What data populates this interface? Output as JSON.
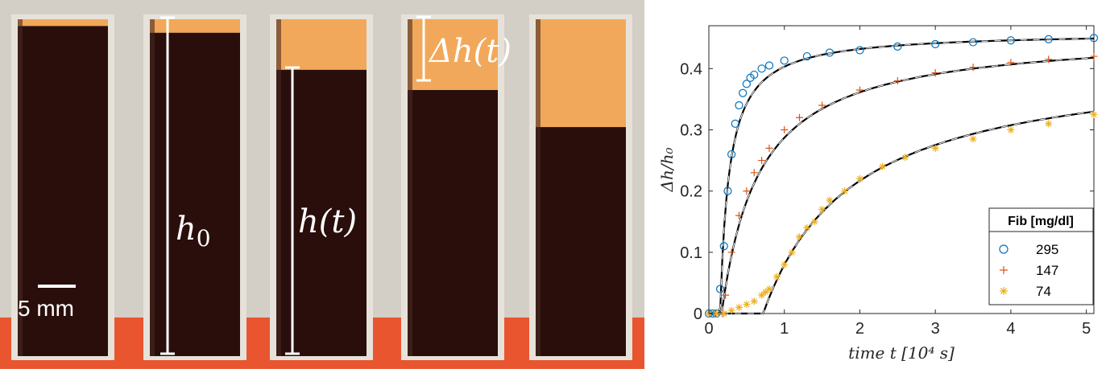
{
  "photo": {
    "labels": {
      "h0": "h0",
      "h0_base": "h",
      "h0_sub": "0",
      "ht": "h(t)",
      "dht": "Δh(t)",
      "scale_bar": "5 mm"
    },
    "colors": {
      "background": "#d4cfc6",
      "blood": "#2a0e0c",
      "plasma": "#f2a85a",
      "base": "#e8552f"
    },
    "tubes": [
      {
        "plasma_fraction": 0.02
      },
      {
        "plasma_fraction": 0.04
      },
      {
        "plasma_fraction": 0.15
      },
      {
        "plasma_fraction": 0.21
      },
      {
        "plasma_fraction": 0.32
      }
    ]
  },
  "chart_data": {
    "type": "scatter",
    "xlabel": "time t [10⁴ s]",
    "ylabel": "Δh/h₀",
    "xlim": [
      0,
      5.1
    ],
    "ylim": [
      0,
      0.47
    ],
    "xticks": [
      0,
      1,
      2,
      3,
      4,
      5
    ],
    "yticks": [
      0,
      0.1,
      0.2,
      0.3,
      0.4
    ],
    "xtick_labels": [
      "0",
      "1",
      "2",
      "3",
      "4",
      "5"
    ],
    "ytick_labels": [
      "0",
      "0.1",
      "0.2",
      "0.3",
      "0.4"
    ],
    "legend": {
      "title": "Fib [mg/dl]",
      "position": "bottom-right"
    },
    "fit_line_style": "black solid with dashed overlay",
    "series": [
      {
        "name": "295",
        "marker": "circle",
        "color": "#0072bd",
        "x": [
          0,
          0.05,
          0.1,
          0.15,
          0.2,
          0.25,
          0.3,
          0.35,
          0.4,
          0.45,
          0.5,
          0.55,
          0.6,
          0.7,
          0.8,
          1.0,
          1.3,
          1.6,
          2.0,
          2.5,
          3.0,
          3.5,
          4.0,
          4.5,
          5.1
        ],
        "y": [
          0,
          0,
          0,
          0.04,
          0.11,
          0.2,
          0.26,
          0.31,
          0.34,
          0.36,
          0.375,
          0.385,
          0.39,
          0.4,
          0.405,
          0.413,
          0.42,
          0.426,
          0.43,
          0.436,
          0.44,
          0.443,
          0.446,
          0.448,
          0.45
        ]
      },
      {
        "name": "147",
        "marker": "plus",
        "color": "#d95319",
        "x": [
          0,
          0.1,
          0.18,
          0.22,
          0.3,
          0.4,
          0.5,
          0.6,
          0.7,
          0.8,
          1.0,
          1.2,
          1.5,
          2.0,
          2.5,
          3.0,
          3.5,
          4.0,
          4.5,
          5.1
        ],
        "y": [
          0,
          0,
          0,
          0.03,
          0.1,
          0.16,
          0.2,
          0.23,
          0.25,
          0.27,
          0.3,
          0.32,
          0.34,
          0.365,
          0.38,
          0.393,
          0.402,
          0.41,
          0.415,
          0.42
        ]
      },
      {
        "name": "74",
        "marker": "asterisk",
        "color": "#edb120",
        "x": [
          0,
          0.1,
          0.2,
          0.3,
          0.4,
          0.5,
          0.6,
          0.7,
          0.75,
          0.8,
          0.9,
          1.0,
          1.1,
          1.2,
          1.3,
          1.4,
          1.5,
          1.6,
          1.8,
          2.0,
          2.3,
          2.6,
          3.0,
          3.5,
          4.0,
          4.5,
          5.1
        ],
        "y": [
          0,
          0,
          0,
          0.005,
          0.01,
          0.015,
          0.02,
          0.03,
          0.035,
          0.04,
          0.06,
          0.08,
          0.1,
          0.125,
          0.14,
          0.15,
          0.17,
          0.185,
          0.2,
          0.22,
          0.24,
          0.255,
          0.27,
          0.285,
          0.3,
          0.31,
          0.325
        ]
      }
    ],
    "fits": [
      {
        "series": "295",
        "t0": 0.15,
        "shape": "rational",
        "amplitude": 0.46,
        "tau": 0.12
      },
      {
        "series": "147",
        "t0": 0.17,
        "shape": "rational",
        "amplitude": 0.46,
        "tau": 0.5
      },
      {
        "series": "74",
        "t0": 0.72,
        "shape": "rational",
        "amplitude": 0.42,
        "tau": 1.2
      }
    ]
  }
}
